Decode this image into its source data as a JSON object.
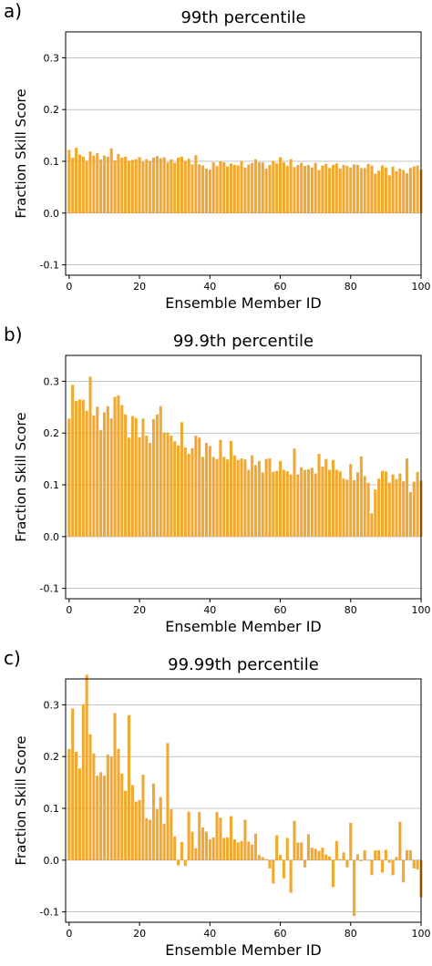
{
  "chart_data": [
    {
      "type": "bar",
      "panel_label": "a)",
      "title": "99th percentile",
      "xlabel": "Ensemble Member ID",
      "ylabel": "Fraction Skill Score",
      "xlim": [
        -1,
        100
      ],
      "ylim": [
        -0.12,
        0.35
      ],
      "xticks": [
        0,
        20,
        40,
        60,
        80,
        100
      ],
      "yticks": [
        -0.1,
        0.0,
        0.1,
        0.2,
        0.3
      ],
      "grid": "horizontal",
      "bar_color": "#F0A830",
      "x": [
        0,
        1,
        2,
        3,
        4,
        5,
        6,
        7,
        8,
        9,
        10,
        11,
        12,
        13,
        14,
        15,
        16,
        17,
        18,
        19,
        20,
        21,
        22,
        23,
        24,
        25,
        26,
        27,
        28,
        29,
        30,
        31,
        32,
        33,
        34,
        35,
        36,
        37,
        38,
        39,
        40,
        41,
        42,
        43,
        44,
        45,
        46,
        47,
        48,
        49,
        50,
        51,
        52,
        53,
        54,
        55,
        56,
        57,
        58,
        59,
        60,
        61,
        62,
        63,
        64,
        65,
        66,
        67,
        68,
        69,
        70,
        71,
        72,
        73,
        74,
        75,
        76,
        77,
        78,
        79,
        80,
        81,
        82,
        83,
        84,
        85,
        86,
        87,
        88,
        89,
        90,
        91,
        92,
        93,
        94,
        95,
        96,
        97,
        98,
        99,
        100
      ],
      "values": [
        0.122,
        0.107,
        0.126,
        0.113,
        0.109,
        0.101,
        0.119,
        0.111,
        0.116,
        0.104,
        0.111,
        0.109,
        0.125,
        0.102,
        0.114,
        0.107,
        0.109,
        0.101,
        0.103,
        0.104,
        0.108,
        0.099,
        0.104,
        0.101,
        0.107,
        0.11,
        0.106,
        0.108,
        0.098,
        0.104,
        0.097,
        0.107,
        0.109,
        0.101,
        0.105,
        0.094,
        0.112,
        0.094,
        0.092,
        0.086,
        0.084,
        0.098,
        0.091,
        0.1,
        0.098,
        0.09,
        0.096,
        0.093,
        0.092,
        0.101,
        0.088,
        0.094,
        0.097,
        0.104,
        0.098,
        0.098,
        0.086,
        0.093,
        0.101,
        0.096,
        0.108,
        0.098,
        0.091,
        0.104,
        0.089,
        0.093,
        0.097,
        0.091,
        0.093,
        0.088,
        0.097,
        0.083,
        0.092,
        0.095,
        0.087,
        0.093,
        0.096,
        0.086,
        0.093,
        0.091,
        0.088,
        0.094,
        0.093,
        0.087,
        0.087,
        0.095,
        0.092,
        0.076,
        0.082,
        0.092,
        0.088,
        0.073,
        0.09,
        0.081,
        0.086,
        0.083,
        0.077,
        0.087,
        0.09,
        0.092,
        0.084
      ]
    },
    {
      "type": "bar",
      "panel_label": "b)",
      "title": "99.9th percentile",
      "xlabel": "Ensemble Member ID",
      "ylabel": "Fraction Skill Score",
      "xlim": [
        -1,
        100
      ],
      "ylim": [
        -0.12,
        0.35
      ],
      "xticks": [
        0,
        20,
        40,
        60,
        80,
        100
      ],
      "yticks": [
        -0.1,
        0.0,
        0.1,
        0.2,
        0.3
      ],
      "grid": "horizontal",
      "bar_color": "#F0A830",
      "x": [
        0,
        1,
        2,
        3,
        4,
        5,
        6,
        7,
        8,
        9,
        10,
        11,
        12,
        13,
        14,
        15,
        16,
        17,
        18,
        19,
        20,
        21,
        22,
        23,
        24,
        25,
        26,
        27,
        28,
        29,
        30,
        31,
        32,
        33,
        34,
        35,
        36,
        37,
        38,
        39,
        40,
        41,
        42,
        43,
        44,
        45,
        46,
        47,
        48,
        49,
        50,
        51,
        52,
        53,
        54,
        55,
        56,
        57,
        58,
        59,
        60,
        61,
        62,
        63,
        64,
        65,
        66,
        67,
        68,
        69,
        70,
        71,
        72,
        73,
        74,
        75,
        76,
        77,
        78,
        79,
        80,
        81,
        82,
        83,
        84,
        85,
        86,
        87,
        88,
        89,
        90,
        91,
        92,
        93,
        94,
        95,
        96,
        97,
        98,
        99,
        100
      ],
      "values": [
        0.228,
        0.293,
        0.262,
        0.265,
        0.264,
        0.243,
        0.309,
        0.234,
        0.251,
        0.206,
        0.24,
        0.252,
        0.228,
        0.27,
        0.273,
        0.254,
        0.236,
        0.191,
        0.233,
        0.229,
        0.192,
        0.228,
        0.195,
        0.181,
        0.227,
        0.236,
        0.252,
        0.201,
        0.201,
        0.195,
        0.184,
        0.176,
        0.221,
        0.172,
        0.16,
        0.171,
        0.195,
        0.191,
        0.154,
        0.181,
        0.175,
        0.154,
        0.15,
        0.187,
        0.154,
        0.149,
        0.185,
        0.157,
        0.148,
        0.151,
        0.149,
        0.129,
        0.157,
        0.138,
        0.146,
        0.124,
        0.15,
        0.151,
        0.125,
        0.127,
        0.146,
        0.129,
        0.126,
        0.12,
        0.17,
        0.12,
        0.134,
        0.129,
        0.13,
        0.133,
        0.122,
        0.16,
        0.135,
        0.15,
        0.129,
        0.148,
        0.129,
        0.126,
        0.112,
        0.11,
        0.14,
        0.109,
        0.124,
        0.155,
        0.117,
        0.104,
        0.045,
        0.091,
        0.112,
        0.127,
        0.126,
        0.104,
        0.12,
        0.111,
        0.122,
        0.107,
        0.151,
        0.086,
        0.106,
        0.125,
        0.108
      ]
    },
    {
      "type": "bar",
      "panel_label": "c)",
      "title": "99.99th percentile",
      "xlabel": "Ensemble Member ID",
      "ylabel": "Fraction Skill Score",
      "xlim": [
        -1,
        100
      ],
      "ylim": [
        -0.12,
        0.35
      ],
      "xticks": [
        0,
        20,
        40,
        60,
        80,
        100
      ],
      "yticks": [
        -0.1,
        0.0,
        0.1,
        0.2,
        0.3
      ],
      "grid": "horizontal",
      "bar_color": "#F0A830",
      "x": [
        0,
        1,
        2,
        3,
        4,
        5,
        6,
        7,
        8,
        9,
        10,
        11,
        12,
        13,
        14,
        15,
        16,
        17,
        18,
        19,
        20,
        21,
        22,
        23,
        24,
        25,
        26,
        27,
        28,
        29,
        30,
        31,
        32,
        33,
        34,
        35,
        36,
        37,
        38,
        39,
        40,
        41,
        42,
        43,
        44,
        45,
        46,
        47,
        48,
        49,
        50,
        51,
        52,
        53,
        54,
        55,
        56,
        57,
        58,
        59,
        60,
        61,
        62,
        63,
        64,
        65,
        66,
        67,
        68,
        69,
        70,
        71,
        72,
        73,
        74,
        75,
        76,
        77,
        78,
        79,
        80,
        81,
        82,
        83,
        84,
        85,
        86,
        87,
        88,
        89,
        90,
        91,
        92,
        93,
        94,
        95,
        96,
        97,
        98,
        99,
        100
      ],
      "values": [
        0.215,
        0.293,
        0.209,
        0.177,
        0.301,
        0.358,
        0.243,
        0.206,
        0.163,
        0.17,
        0.163,
        0.204,
        0.2,
        0.284,
        0.215,
        0.167,
        0.134,
        0.28,
        0.145,
        0.113,
        0.116,
        0.165,
        0.081,
        0.078,
        0.148,
        0.098,
        0.122,
        0.07,
        0.226,
        0.098,
        0.046,
        -0.01,
        0.035,
        -0.011,
        0.094,
        0.055,
        0.023,
        0.093,
        0.063,
        0.055,
        0.04,
        0.044,
        0.093,
        0.082,
        0.043,
        0.044,
        0.085,
        0.04,
        0.034,
        0.037,
        0.078,
        0.036,
        0.03,
        0.051,
        0.01,
        0.006,
        0.002,
        -0.016,
        -0.045,
        0.048,
        0.01,
        -0.035,
        0.043,
        -0.063,
        0.076,
        0.034,
        0.034,
        -0.014,
        0.05,
        0.024,
        0.022,
        0.018,
        0.024,
        0.011,
        0.007,
        -0.052,
        0.037,
        0.002,
        0.015,
        -0.014,
        0.072,
        -0.108,
        0.011,
        -0.002,
        0.019,
        -0.001,
        -0.029,
        0.019,
        0.019,
        -0.024,
        0.02,
        -0.005,
        -0.029,
        0.006,
        0.074,
        -0.043,
        0.019,
        0.019,
        -0.016,
        -0.018,
        -0.072
      ]
    }
  ]
}
